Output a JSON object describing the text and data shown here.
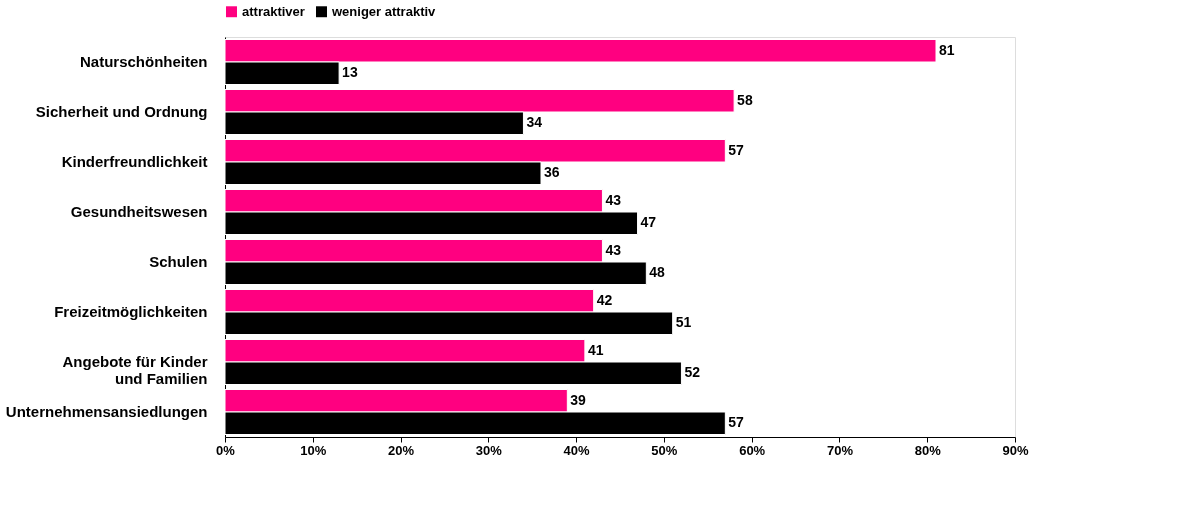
{
  "chart_data": {
    "type": "bar",
    "orientation": "horizontal",
    "categories": [
      "Naturschönheiten",
      "Sicherheit und Ordnung",
      "Kinderfreundlichkeit",
      "Gesundheitswesen",
      "Schulen",
      "Freizeitmöglichkeiten",
      "Angebote für Kinder\nund Familien",
      "Unternehmensansiedlungen"
    ],
    "series": [
      {
        "name": "attraktiver",
        "color": "#ff0080",
        "values": [
          81,
          58,
          57,
          43,
          43,
          42,
          41,
          39
        ]
      },
      {
        "name": "weniger attraktiv",
        "color": "#000000",
        "values": [
          13,
          34,
          36,
          47,
          48,
          51,
          52,
          57
        ]
      }
    ],
    "xlim": [
      0,
      90
    ],
    "xticks": [
      {
        "value": 0,
        "label": "0%"
      },
      {
        "value": 10,
        "label": "10%"
      },
      {
        "value": 20,
        "label": "20%"
      },
      {
        "value": 30,
        "label": "30%"
      },
      {
        "value": 40,
        "label": "40%"
      },
      {
        "value": 50,
        "label": "50%"
      },
      {
        "value": 60,
        "label": "60%"
      },
      {
        "value": 70,
        "label": "70%"
      },
      {
        "value": 80,
        "label": "80%"
      },
      {
        "value": 90,
        "label": "90%"
      }
    ],
    "data_labels": true,
    "legend": "top",
    "grid": false
  }
}
